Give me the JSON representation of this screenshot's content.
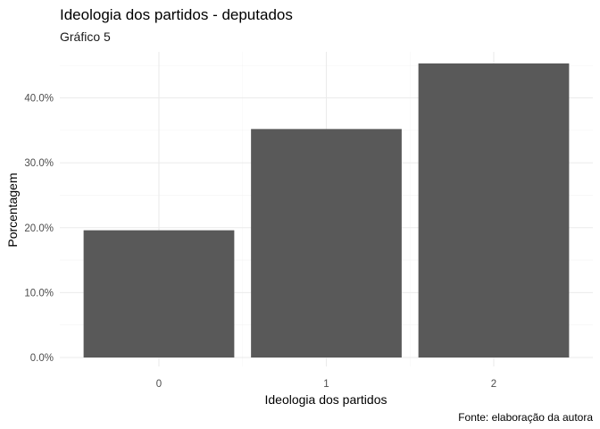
{
  "chart_data": {
    "type": "bar",
    "title": "Ideologia dos partidos - deputados",
    "subtitle": "Gráfico 5",
    "caption": "Fonte: elaboração da autora",
    "xlabel": "Ideologia dos partidos",
    "ylabel": "Porcentagem",
    "categories": [
      "0",
      "1",
      "2"
    ],
    "values": [
      19.6,
      35.2,
      45.3
    ],
    "ylim": [
      0,
      47.5
    ],
    "yticks": [
      0,
      10,
      20,
      30,
      40
    ],
    "ytick_labels": [
      "0.0%",
      "10.0%",
      "20.0%",
      "30.0%",
      "40.0%"
    ],
    "bar_color": "#595959",
    "grid": true,
    "legend": "none"
  }
}
